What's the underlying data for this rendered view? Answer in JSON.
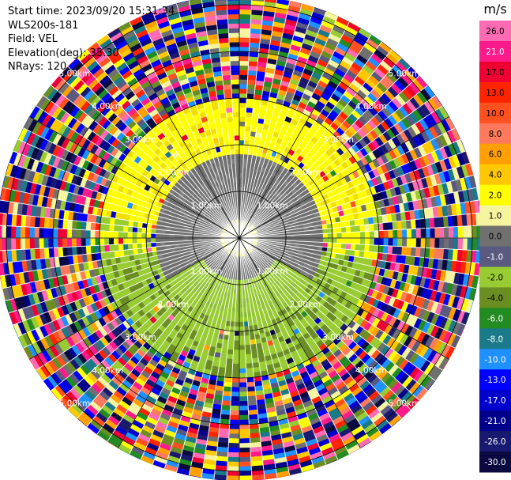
{
  "info": {
    "start_time": "Start time: 2023/09/20 15:31:34",
    "device": "WLS200s-181",
    "field": "Field: VEL",
    "elevation": "Elevation(deg): 35.30",
    "nrays": "NRays: 120"
  },
  "chart_data": {
    "type": "polar-ppi",
    "field": "VEL",
    "units": "m/s",
    "n_rays": 120,
    "elevation_deg": 35.3,
    "range_rings_km": [
      1.0,
      2.0,
      3.0,
      4.0,
      5.0
    ],
    "range_ring_labels": [
      "1.00km",
      "2.00km",
      "3.00km",
      "4.00km",
      "5.00km"
    ],
    "spokes_deg": [
      0,
      30,
      60,
      90,
      120,
      150,
      180,
      210,
      240,
      270,
      300,
      330
    ],
    "max_range_km": 5.2,
    "colorbar": {
      "title": "m/s",
      "ticks": [
        "26.0",
        "21.0",
        "17.0",
        "13.0",
        "10.0",
        "8.0",
        "6.0",
        "4.0",
        "2.0",
        "1.0",
        "0.0",
        "-1.0",
        "-2.0",
        "-4.0",
        "-6.0",
        "-8.0",
        "-10.0",
        "-13.0",
        "-17.0",
        "-21.0",
        "-26.0",
        "-30.0"
      ],
      "colors": [
        "#ff6ab4",
        "#ff1a8c",
        "#ee0033",
        "#ff2400",
        "#ff5020",
        "#ff7a5c",
        "#ffa000",
        "#ffc800",
        "#ffff00",
        "#f5f5a0",
        "#707070",
        "#5a5a80",
        "#99cc33",
        "#6b8e23",
        "#228b22",
        "#1a7a8a",
        "#1e90ff",
        "#0000ff",
        "#0000cc",
        "#00008b",
        "#191970",
        "#0a0a40"
      ],
      "tick_colors": [
        "#000",
        "#fff",
        "#000",
        "#000",
        "#000",
        "#000",
        "#000",
        "#000",
        "#000",
        "#000",
        "#000",
        "#fff",
        "#000",
        "#000",
        "#fff",
        "#fff",
        "#fff",
        "#fff",
        "#fff",
        "#fff",
        "#fff",
        "#fff"
      ]
    },
    "velocity_structure": [
      {
        "region": "outer noise",
        "range_km": [
          3.0,
          5.2
        ],
        "value": "random"
      },
      {
        "region": "north arc",
        "range_km": [
          1.8,
          3.0
        ],
        "az_deg": [
          280,
          80
        ],
        "value": 2.0
      },
      {
        "region": "inner ring",
        "range_km": [
          0.4,
          1.8
        ],
        "value": 0.0
      },
      {
        "region": "south arc",
        "range_km": [
          1.2,
          3.0
        ],
        "az_deg": [
          100,
          260
        ],
        "value": -2.0
      }
    ]
  }
}
